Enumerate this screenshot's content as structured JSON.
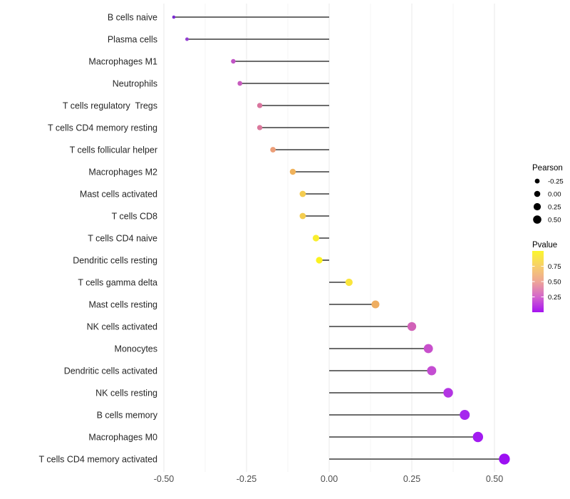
{
  "chart_data": {
    "type": "scatter",
    "subtype": "lollipop",
    "orientation": "horizontal",
    "title": "",
    "xlabel": "",
    "ylabel": "",
    "grid": "vertical major and minor gridlines, no axis lines",
    "legend_position": "right",
    "categories": [
      "B cells naive",
      "Plasma cells",
      "Macrophages M1",
      "Neutrophils",
      "T cells regulatory  Tregs",
      "T cells CD4 memory resting",
      "T cells follicular helper",
      "Macrophages M2",
      "Mast cells activated",
      "T cells CD8",
      "T cells CD4 naive",
      "Dendritic cells resting",
      "T cells gamma delta",
      "Mast cells resting",
      "NK cells activated",
      "Monocytes",
      "Dendritic cells activated",
      "NK cells resting",
      "B cells memory",
      "Macrophages M0",
      "T cells CD4 memory activated"
    ],
    "series": [
      {
        "name": "Pearson correlation",
        "values": [
          -0.47,
          -0.43,
          -0.29,
          -0.27,
          -0.21,
          -0.21,
          -0.17,
          -0.11,
          -0.08,
          -0.08,
          -0.04,
          -0.03,
          0.06,
          0.14,
          0.25,
          0.3,
          0.31,
          0.36,
          0.41,
          0.45,
          0.53
        ]
      }
    ],
    "point_colors": [
      "#7B2CD1",
      "#9440D2",
      "#C154C6",
      "#C75BBE",
      "#D9759E",
      "#DB789C",
      "#EC9E78",
      "#F0B25B",
      "#F4CC50",
      "#F4CD4F",
      "#F9EE2E",
      "#FBF21F",
      "#FAE53C",
      "#EEAD60",
      "#D162B8",
      "#C850CC",
      "#C44DD2",
      "#B335E3",
      "#A628EE",
      "#A21BF0",
      "#9C10F2"
    ],
    "stem_color": "#3C3C3C",
    "xlim": [
      -0.53,
      0.6
    ],
    "x_tick_values": [
      -0.5,
      -0.25,
      0,
      0.25,
      0.5
    ],
    "x_tick_labels": [
      "-0.50",
      "-0.25",
      "0.00",
      "0.25",
      "0.50"
    ],
    "x_minor_tick_values": [
      -0.375,
      -0.125,
      0.125,
      0.375
    ],
    "major_grid_color": "#E9E9E9",
    "minor_grid_color": "#F4F4F4",
    "axis_text_color": "#4D4D4D",
    "category_text_color": "#262626",
    "size_legend": {
      "title": "Pearson",
      "labels": [
        "-0.25",
        "0.00",
        "0.25",
        "0.50"
      ],
      "values": [
        -0.25,
        0.0,
        0.25,
        0.5
      ],
      "key_color": "#000000"
    },
    "color_legend": {
      "title": "Pvalue",
      "tick_labels": [
        "0.75",
        "0.50",
        "0.25"
      ],
      "tick_values": [
        0.75,
        0.5,
        0.25
      ],
      "bar_range_top_to_bottom": [
        1.0,
        0.0
      ],
      "gradient_top_to_bottom": [
        "#FBF62B",
        "#F7CF6C",
        "#EEA596",
        "#D466CD",
        "#A513F0"
      ]
    }
  }
}
